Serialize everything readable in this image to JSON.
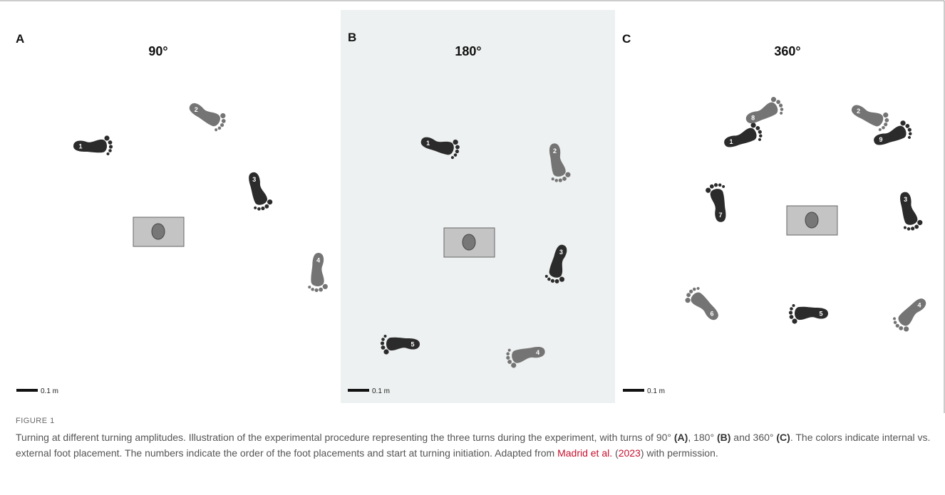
{
  "panels": [
    {
      "letter": "A",
      "title": "90°",
      "scale": "0.1 m",
      "steps": [
        "1",
        "2",
        "3",
        "4"
      ]
    },
    {
      "letter": "B",
      "title": "180°",
      "scale": "0.1 m",
      "steps": [
        "1",
        "2",
        "3",
        "4",
        "5"
      ]
    },
    {
      "letter": "C",
      "title": "360°",
      "scale": "0.1 m",
      "steps": [
        "1",
        "8",
        "2",
        "9",
        "7",
        "3",
        "6",
        "5",
        "4"
      ]
    }
  ],
  "figure": {
    "label": "FIGURE 1",
    "caption": [
      "Turning at different turning amplitudes. Illustration of the experimental procedure representing the three turns during the experiment, with turns of 90° ",
      "(A)",
      ", 180° ",
      "(B)",
      " and 360° ",
      "(C)",
      ". The colors indicate internal vs. external foot placement. The numbers indicate the order of the foot placements and start at turning initiation. Adapted from ",
      "Madrid et al.",
      " (",
      "2023",
      ") with permission."
    ]
  }
}
